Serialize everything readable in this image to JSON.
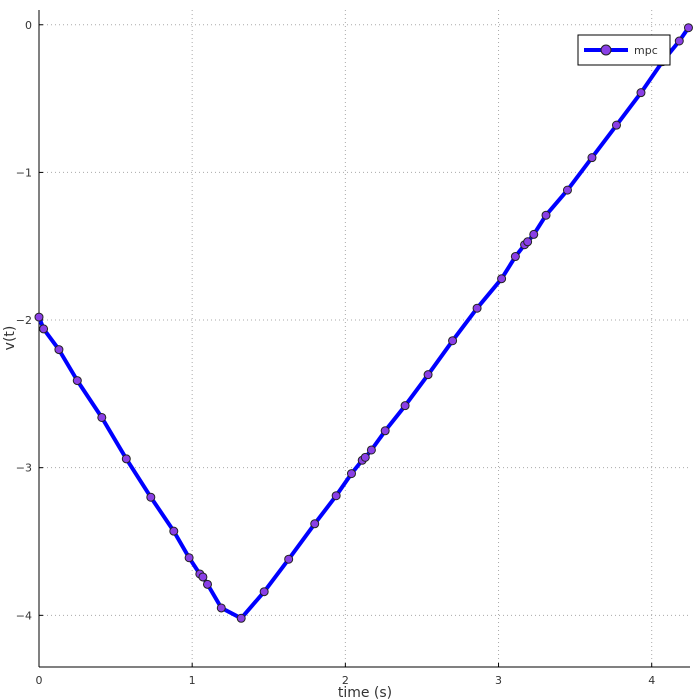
{
  "chart_data": {
    "type": "line",
    "xlabel": "time (s)",
    "ylabel": "v(t)",
    "xlim": [
      0,
      4.25
    ],
    "ylim": [
      -4.35,
      0.1
    ],
    "x_ticks": [
      0,
      1,
      2,
      3,
      4
    ],
    "y_ticks": [
      0,
      -1,
      -2,
      -3,
      -4
    ],
    "grid": true,
    "legend_position": "top-right",
    "line_color": "#0000ff",
    "marker_color": "#8a3fe6",
    "series": [
      {
        "name": "mpc",
        "x": [
          0.0,
          0.03,
          0.13,
          0.25,
          0.41,
          0.57,
          0.73,
          0.88,
          0.98,
          1.05,
          1.07,
          1.1,
          1.19,
          1.32,
          1.47,
          1.63,
          1.8,
          1.94,
          2.04,
          2.11,
          2.13,
          2.17,
          2.26,
          2.39,
          2.54,
          2.7,
          2.86,
          3.02,
          3.11,
          3.17,
          3.19,
          3.23,
          3.31,
          3.45,
          3.61,
          3.77,
          3.93,
          4.07,
          4.18,
          4.24
        ],
        "y": [
          -1.98,
          -2.06,
          -2.2,
          -2.41,
          -2.66,
          -2.94,
          -3.2,
          -3.43,
          -3.61,
          -3.72,
          -3.74,
          -3.79,
          -3.95,
          -4.02,
          -3.84,
          -3.62,
          -3.38,
          -3.19,
          -3.04,
          -2.95,
          -2.93,
          -2.88,
          -2.75,
          -2.58,
          -2.37,
          -2.14,
          -1.92,
          -1.72,
          -1.57,
          -1.49,
          -1.47,
          -1.42,
          -1.29,
          -1.12,
          -0.9,
          -0.68,
          -0.46,
          -0.25,
          -0.11,
          -0.02
        ]
      }
    ]
  }
}
